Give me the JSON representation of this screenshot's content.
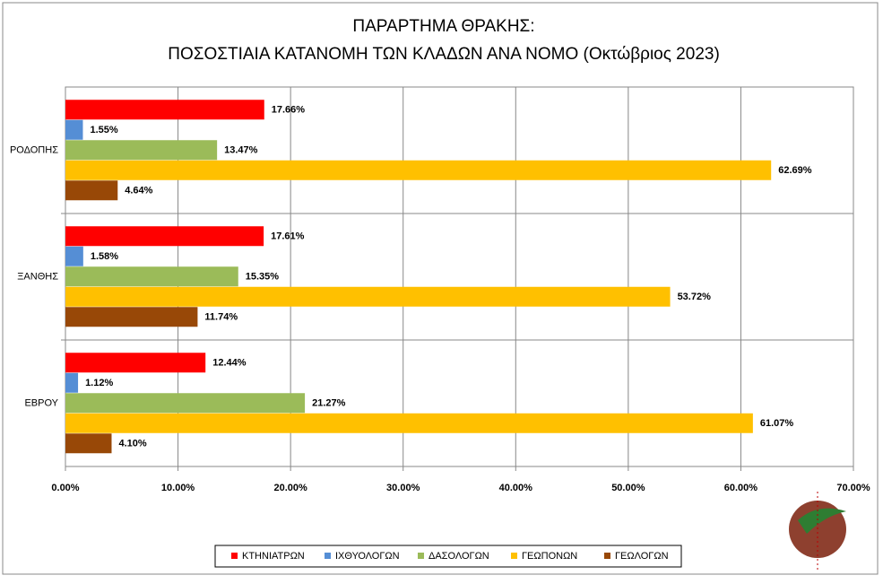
{
  "chart_data": {
    "type": "hbar",
    "title": [
      "ΠΑΡΑΡΤΗΜΑ ΘΡΑΚΗΣ:",
      "ΠΟΣΟΣΤΙΑΙΑ ΚΑΤΑΝΟΜΗ ΤΩΝ ΚΛΑΔΩΝ ΑΝΑ ΝΟΜΟ (Οκτώβριος 2023)"
    ],
    "categories": [
      "ΡΟΔΟΠΗΣ",
      "ΞΑΝΘΗΣ",
      "ΕΒΡΟΥ"
    ],
    "series": [
      {
        "name": "ΚΤΗΝΙΑΤΡΩΝ",
        "color": "#ff0000",
        "values": [
          17.66,
          17.61,
          12.44
        ],
        "value_labels": [
          "17.66%",
          "17.61%",
          "12.44%"
        ]
      },
      {
        "name": "ΙΧΘΥΟΛΟΓΩΝ",
        "color": "#558ed5",
        "values": [
          1.55,
          1.58,
          1.12
        ],
        "value_labels": [
          "1.55%",
          "1.58%",
          "1.12%"
        ]
      },
      {
        "name": "ΔΑΣΟΛΟΓΩΝ",
        "color": "#9bbb59",
        "values": [
          13.47,
          15.35,
          21.27
        ],
        "value_labels": [
          "13.47%",
          "15.35%",
          "21.27%"
        ]
      },
      {
        "name": "ΓΕΩΠΟΝΩΝ",
        "color": "#ffc000",
        "values": [
          62.69,
          53.72,
          61.07
        ],
        "value_labels": [
          "62.69%",
          "53.72%",
          "61.07%"
        ]
      },
      {
        "name": "ΓΕΩΛΟΓΩΝ",
        "color": "#984807",
        "values": [
          4.64,
          11.74,
          4.1
        ],
        "value_labels": [
          "4.64%",
          "11.74%",
          "4.10%"
        ]
      }
    ],
    "xlim": [
      0,
      70
    ],
    "xticks": [
      {
        "value": 0,
        "label": "0.00%"
      },
      {
        "value": 10,
        "label": "10.00%"
      },
      {
        "value": 20,
        "label": "20.00%"
      },
      {
        "value": 30,
        "label": "30.00%"
      },
      {
        "value": 40,
        "label": "40.00%"
      },
      {
        "value": 50,
        "label": "50.00%"
      },
      {
        "value": 60,
        "label": "60.00%"
      },
      {
        "value": 70,
        "label": "70.00%"
      }
    ],
    "grid": true,
    "legend": "bottom"
  }
}
